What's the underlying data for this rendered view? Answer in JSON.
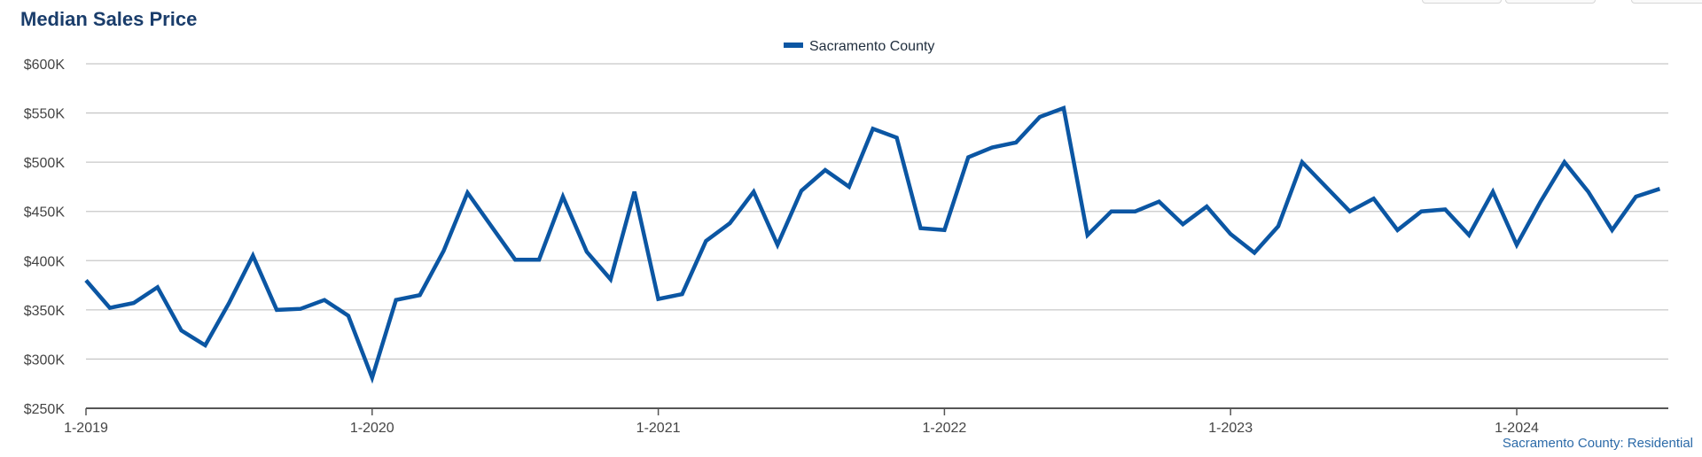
{
  "title": "Median Sales Price",
  "footer": "Sacramento County: Residential",
  "colors": {
    "series": "#0b56a3",
    "title": "#1a3d6b",
    "grid": "#c8c8c8",
    "axis": "#555555",
    "footer": "#2b6aa8"
  },
  "chart_data": {
    "type": "line",
    "title": "Median Sales Price",
    "xlabel": "",
    "ylabel": "",
    "ylim": [
      250000,
      600000
    ],
    "yticks": [
      250000,
      300000,
      350000,
      400000,
      450000,
      500000,
      550000,
      600000
    ],
    "ytick_labels": [
      "$250K",
      "$300K",
      "$350K",
      "$400K",
      "$450K",
      "$500K",
      "$550K",
      "$600K"
    ],
    "xticks": [
      "1-2019",
      "1-2020",
      "1-2021",
      "1-2022",
      "1-2023",
      "1-2024"
    ],
    "x_start": "2019-01",
    "grid": true,
    "legend": "top-center",
    "series": [
      {
        "name": "Sacramento County",
        "color": "#0b56a3",
        "values": [
          380000,
          352000,
          357000,
          373000,
          329000,
          314000,
          357000,
          405000,
          350000,
          351000,
          360000,
          344000,
          281000,
          360000,
          365000,
          410000,
          469000,
          435000,
          401000,
          401000,
          465000,
          409000,
          381000,
          470000,
          361000,
          366000,
          420000,
          438000,
          470000,
          416000,
          471000,
          492000,
          475000,
          534000,
          525000,
          433000,
          431000,
          505000,
          515000,
          520000,
          546000,
          555000,
          426000,
          450000,
          450000,
          460000,
          437000,
          455000,
          427000,
          408000,
          435000,
          500000,
          475000,
          450000,
          463000,
          431000,
          450000,
          452000,
          426000,
          470000,
          416000,
          460000,
          500000,
          470000,
          431000,
          465000,
          473000
        ]
      }
    ]
  }
}
